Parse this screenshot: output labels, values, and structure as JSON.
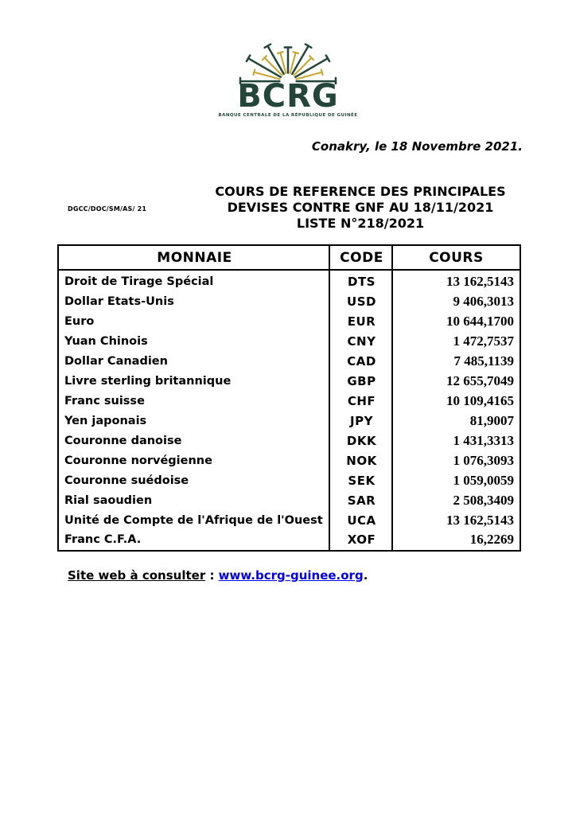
{
  "logo": {
    "acronym": "BCRG",
    "subtitle": "BANQUE CENTRALE DE LA RÉPUBLIQUE DE GUINÉE",
    "colors": {
      "green": "#24463a",
      "gold": "#c8a42c"
    }
  },
  "date_line": "Conakry, le 18 Novembre 2021.",
  "reference_code": "DGCC/DOC/SM/AS/ 21",
  "title": {
    "line1": "COURS DE REFERENCE DES PRINCIPALES",
    "line2": "DEVISES CONTRE GNF AU 18/11/2021",
    "line3": "LISTE N°218/2021"
  },
  "table": {
    "headers": {
      "monnaie": "MONNAIE",
      "code": "CODE",
      "cours": "COURS"
    },
    "rows": [
      {
        "monnaie": "Droit de Tirage Spécial",
        "code": "DTS",
        "cours": "13 162,5143"
      },
      {
        "monnaie": "Dollar Etats-Unis",
        "code": "USD",
        "cours": "9 406,3013"
      },
      {
        "monnaie": "Euro",
        "code": "EUR",
        "cours": "10 644,1700"
      },
      {
        "monnaie": "Yuan Chinois",
        "code": "CNY",
        "cours": "1 472,7537"
      },
      {
        "monnaie": "Dollar Canadien",
        "code": "CAD",
        "cours": "7 485,1139"
      },
      {
        "monnaie": "Livre sterling britannique",
        "code": "GBP",
        "cours": "12 655,7049"
      },
      {
        "monnaie": "Franc suisse",
        "code": "CHF",
        "cours": "10 109,4165"
      },
      {
        "monnaie": "Yen japonais",
        "code": "JPY",
        "cours": "81,9007"
      },
      {
        "monnaie": "Couronne danoise",
        "code": "DKK",
        "cours": "1 431,3313"
      },
      {
        "monnaie": "Couronne norvégienne",
        "code": "NOK",
        "cours": "1 076,3093"
      },
      {
        "monnaie": "Couronne suédoise",
        "code": "SEK",
        "cours": "1 059,0059"
      },
      {
        "monnaie": "Rial saoudien",
        "code": "SAR",
        "cours": "2 508,3409"
      },
      {
        "monnaie": "Unité de Compte de l'Afrique de l'Ouest",
        "code": "UCA",
        "cours": "13 162,5143"
      },
      {
        "monnaie": "Franc C.F.A.",
        "code": "XOF",
        "cours": "16,2269"
      }
    ]
  },
  "footer": {
    "label": "Site web à consulter",
    "separator": " : ",
    "link": "www.bcrg-guinee.org",
    "period": ".",
    "link_color": "#0000ee"
  }
}
